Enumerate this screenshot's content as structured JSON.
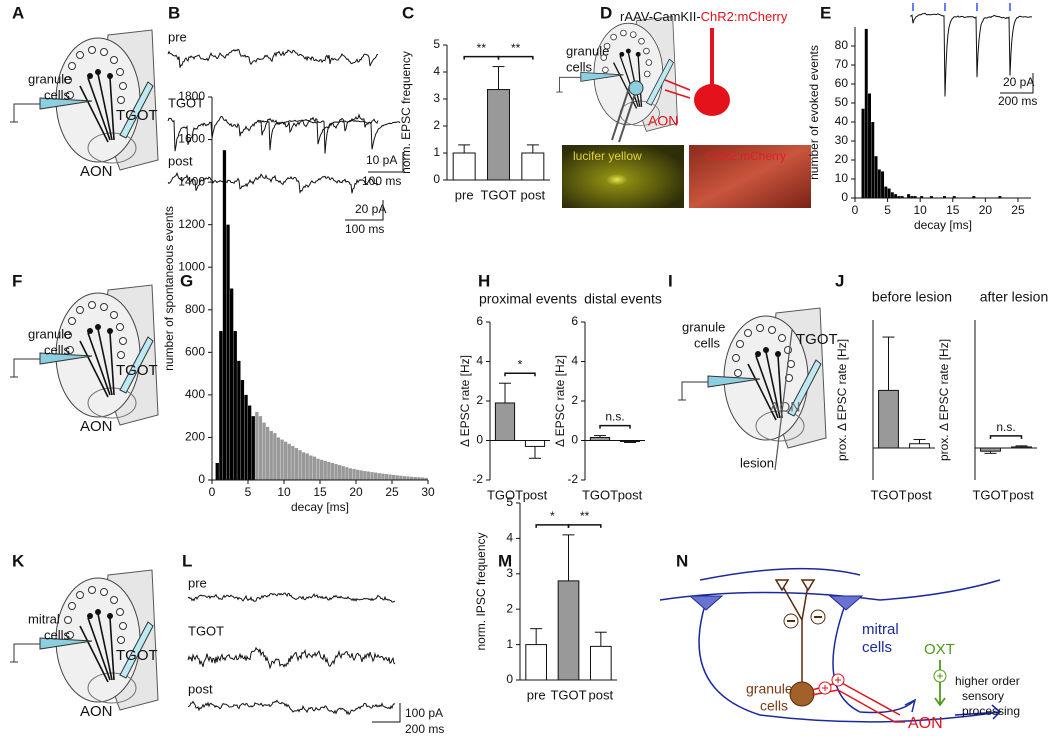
{
  "panel_letters": [
    "A",
    "B",
    "C",
    "D",
    "E",
    "F",
    "G",
    "H",
    "I",
    "J",
    "K",
    "L",
    "M",
    "N"
  ],
  "diagram_a": {
    "cells": [
      "granule",
      "cells"
    ],
    "tgot": "TGOT",
    "aon": "AON"
  },
  "diagram_f": {
    "cells": [
      "granule",
      "cells"
    ],
    "tgot": "TGOT",
    "aon": "AON"
  },
  "diagram_i": {
    "cells": [
      "granule",
      "cells"
    ],
    "tgot": "TGOT",
    "aon": "AON",
    "lesion": "lesion"
  },
  "diagram_k": {
    "cells": [
      "mitral",
      "cells"
    ],
    "tgot": "TGOT",
    "aon": "AON"
  },
  "diagram_d": {
    "construct_prefix": "rAAV-CamKII-",
    "construct_opsin": "ChR2:mCherry",
    "cells": [
      "granule",
      "cells"
    ],
    "aon": "AON",
    "photo_left": "lucifer yellow",
    "photo_right": "ChR2:mCherry"
  },
  "diagram_n": {
    "mitral": [
      "mitral",
      "cells"
    ],
    "granule": [
      "granule",
      "cells"
    ],
    "oxt": "OXT",
    "aon": "AON",
    "output": [
      "higher order",
      "sensory",
      "processing"
    ]
  },
  "traces_b": {
    "conditions": [
      "pre",
      "TGOT",
      "post"
    ],
    "scale_y": "20 pA",
    "scale_x": "100 ms"
  },
  "traces_l": {
    "conditions": [
      "pre",
      "TGOT",
      "post"
    ],
    "scale_y": "100 pA",
    "scale_x": "200 ms"
  },
  "chart_data": [
    {
      "type": "bar",
      "ylabel": "norm. EPSC frequency",
      "categories": [
        "pre",
        "TGOT",
        "post"
      ],
      "values": [
        1,
        3.35,
        1
      ],
      "errors": [
        0.3,
        0.85,
        0.3
      ],
      "colors": [
        "#ffffff",
        "#999999",
        "#ffffff"
      ],
      "ylim": [
        0,
        5
      ],
      "yticks": [
        0,
        1,
        2,
        3,
        4,
        5
      ],
      "significance": [
        "**",
        "**"
      ]
    },
    {
      "type": "histogram",
      "xlabel": "decay [ms]",
      "ylabel": "number of evoked events",
      "color": "#000000",
      "bins": [
        0,
        0.5,
        1,
        1.5,
        2,
        2.5,
        3,
        3.5,
        4,
        4.5,
        5,
        5.5,
        6,
        6.5,
        7,
        7.5,
        8,
        8.5,
        9,
        9.5,
        10,
        10.5,
        11,
        11.5,
        12,
        12.5,
        13,
        13.5,
        14,
        14.5,
        15,
        15.5,
        16,
        16.5,
        17,
        17.5,
        18,
        18.5,
        19,
        19.5,
        20,
        20.5,
        21,
        21.5,
        22,
        22.5,
        23,
        23.5,
        24,
        24.5,
        25,
        25.5,
        26
      ],
      "values": [
        0,
        0,
        47,
        89,
        55,
        40,
        22,
        15,
        14,
        6,
        5,
        3,
        2,
        1,
        1,
        0,
        2,
        1,
        1,
        0,
        1,
        0,
        0,
        1,
        0,
        0,
        0,
        1,
        0,
        0,
        1,
        0,
        0,
        0,
        0,
        0,
        1,
        0,
        0,
        0,
        0,
        0,
        0,
        0,
        1,
        0,
        0,
        0,
        0,
        0,
        0,
        0
      ],
      "xlim": [
        0,
        27
      ],
      "xticks": [
        0,
        5,
        10,
        15,
        20,
        25
      ],
      "ylim": [
        0,
        90
      ],
      "yticks": [
        0,
        10,
        20,
        30,
        40,
        50,
        60,
        70,
        80
      ],
      "inset_scale": [
        "20 pA",
        "200 ms"
      ]
    },
    {
      "type": "histogram",
      "xlabel": "decay [ms]",
      "ylabel": "number of spontaneous events",
      "bins": [
        0,
        0.5,
        1,
        1.5,
        2,
        2.5,
        3,
        3.5,
        4,
        4.5,
        5,
        5.5,
        6,
        6.5,
        7,
        7.5,
        8,
        8.5,
        9,
        9.5,
        10,
        10.5,
        11,
        11.5,
        12,
        12.5,
        13,
        13.5,
        14,
        14.5,
        15,
        15.5,
        16,
        16.5,
        17,
        17.5,
        18,
        18.5,
        19,
        19.5,
        20,
        20.5,
        21,
        21.5,
        22,
        22.5,
        23,
        23.5,
        24,
        24.5,
        25,
        25.5,
        26,
        26.5,
        27,
        27.5,
        28,
        28.5,
        29,
        29.5,
        30
      ],
      "values": [
        0,
        80,
        700,
        1550,
        1200,
        900,
        700,
        560,
        470,
        400,
        350,
        300,
        320,
        300,
        270,
        250,
        230,
        220,
        200,
        190,
        180,
        170,
        160,
        150,
        140,
        130,
        125,
        115,
        110,
        100,
        95,
        90,
        85,
        80,
        75,
        70,
        65,
        60,
        55,
        52,
        48,
        45,
        42,
        40,
        37,
        35,
        32,
        30,
        28,
        26,
        24,
        22,
        20,
        18,
        17,
        15,
        14,
        13,
        12,
        10
      ],
      "colors": [
        "#000000",
        "#000000",
        "#000000",
        "#000000",
        "#000000",
        "#000000",
        "#000000",
        "#000000",
        "#000000",
        "#000000",
        "#000000",
        "#000000",
        "#999999",
        "#999999",
        "#999999",
        "#999999",
        "#999999",
        "#999999",
        "#999999",
        "#999999",
        "#999999",
        "#999999",
        "#999999",
        "#999999",
        "#999999",
        "#999999",
        "#999999",
        "#999999",
        "#999999",
        "#999999",
        "#999999",
        "#999999",
        "#999999",
        "#999999",
        "#999999",
        "#999999",
        "#999999",
        "#999999",
        "#999999",
        "#999999",
        "#999999",
        "#999999",
        "#999999",
        "#999999",
        "#999999",
        "#999999",
        "#999999",
        "#999999",
        "#999999",
        "#999999",
        "#999999",
        "#999999",
        "#999999",
        "#999999",
        "#999999",
        "#999999",
        "#999999",
        "#999999",
        "#999999",
        "#999999"
      ],
      "xlim": [
        0,
        30
      ],
      "xticks": [
        0,
        5,
        10,
        15,
        20,
        25,
        30
      ],
      "ylim": [
        0,
        1800
      ],
      "yticks": [
        0,
        200,
        400,
        600,
        800,
        1000,
        1200,
        1400,
        1600,
        1800
      ],
      "inset_scale": [
        "10 pA",
        "100 ms"
      ]
    },
    {
      "type": "bar",
      "title": "proximal events",
      "ylabel": "Δ EPSC rate [Hz]",
      "categories": [
        "TGOT",
        "post"
      ],
      "values": [
        1.9,
        -0.3
      ],
      "errors": [
        1.0,
        0.6
      ],
      "colors": [
        "#999999",
        "#ffffff"
      ],
      "ylim": [
        -2,
        6
      ],
      "yticks": [
        -2,
        0,
        2,
        4,
        6
      ],
      "significance": [
        "*"
      ]
    },
    {
      "type": "bar",
      "title": "distal events",
      "ylabel": "Δ EPSC rate [Hz]",
      "categories": [
        "TGOT",
        "post"
      ],
      "values": [
        0.15,
        -0.05
      ],
      "errors": [
        0.1,
        0.05
      ],
      "colors": [
        "#999999",
        "#ffffff"
      ],
      "ylim": [
        -2,
        6
      ],
      "yticks": [
        -2,
        0,
        2,
        4,
        6
      ],
      "significance": [
        "n.s."
      ]
    },
    {
      "type": "bar",
      "title": "before lesion",
      "ylabel": "prox. Δ EPSC rate [Hz]",
      "categories": [
        "TGOT",
        "post"
      ],
      "values": [
        2.7,
        0.2
      ],
      "errors": [
        2.5,
        0.2
      ],
      "colors": [
        "#999999",
        "#ffffff"
      ],
      "ylim": [
        -1.5,
        6
      ]
    },
    {
      "type": "bar",
      "title": "after lesion",
      "ylabel": "prox. Δ EPSC rate [Hz]",
      "categories": [
        "TGOT",
        "post"
      ],
      "values": [
        -0.15,
        0.05
      ],
      "errors": [
        0.1,
        0.05
      ],
      "colors": [
        "#999999",
        "#ffffff"
      ],
      "ylim": [
        -1.5,
        6
      ],
      "significance": [
        "n.s."
      ]
    },
    {
      "type": "bar",
      "ylabel": "norm. IPSC frequency",
      "categories": [
        "pre",
        "TGOT",
        "post"
      ],
      "values": [
        1,
        2.8,
        0.95
      ],
      "errors": [
        0.45,
        1.3,
        0.4
      ],
      "colors": [
        "#ffffff",
        "#999999",
        "#ffffff"
      ],
      "ylim": [
        0,
        5
      ],
      "yticks": [
        0,
        1,
        2,
        3,
        4,
        5
      ],
      "significance": [
        "*",
        "**"
      ]
    }
  ]
}
